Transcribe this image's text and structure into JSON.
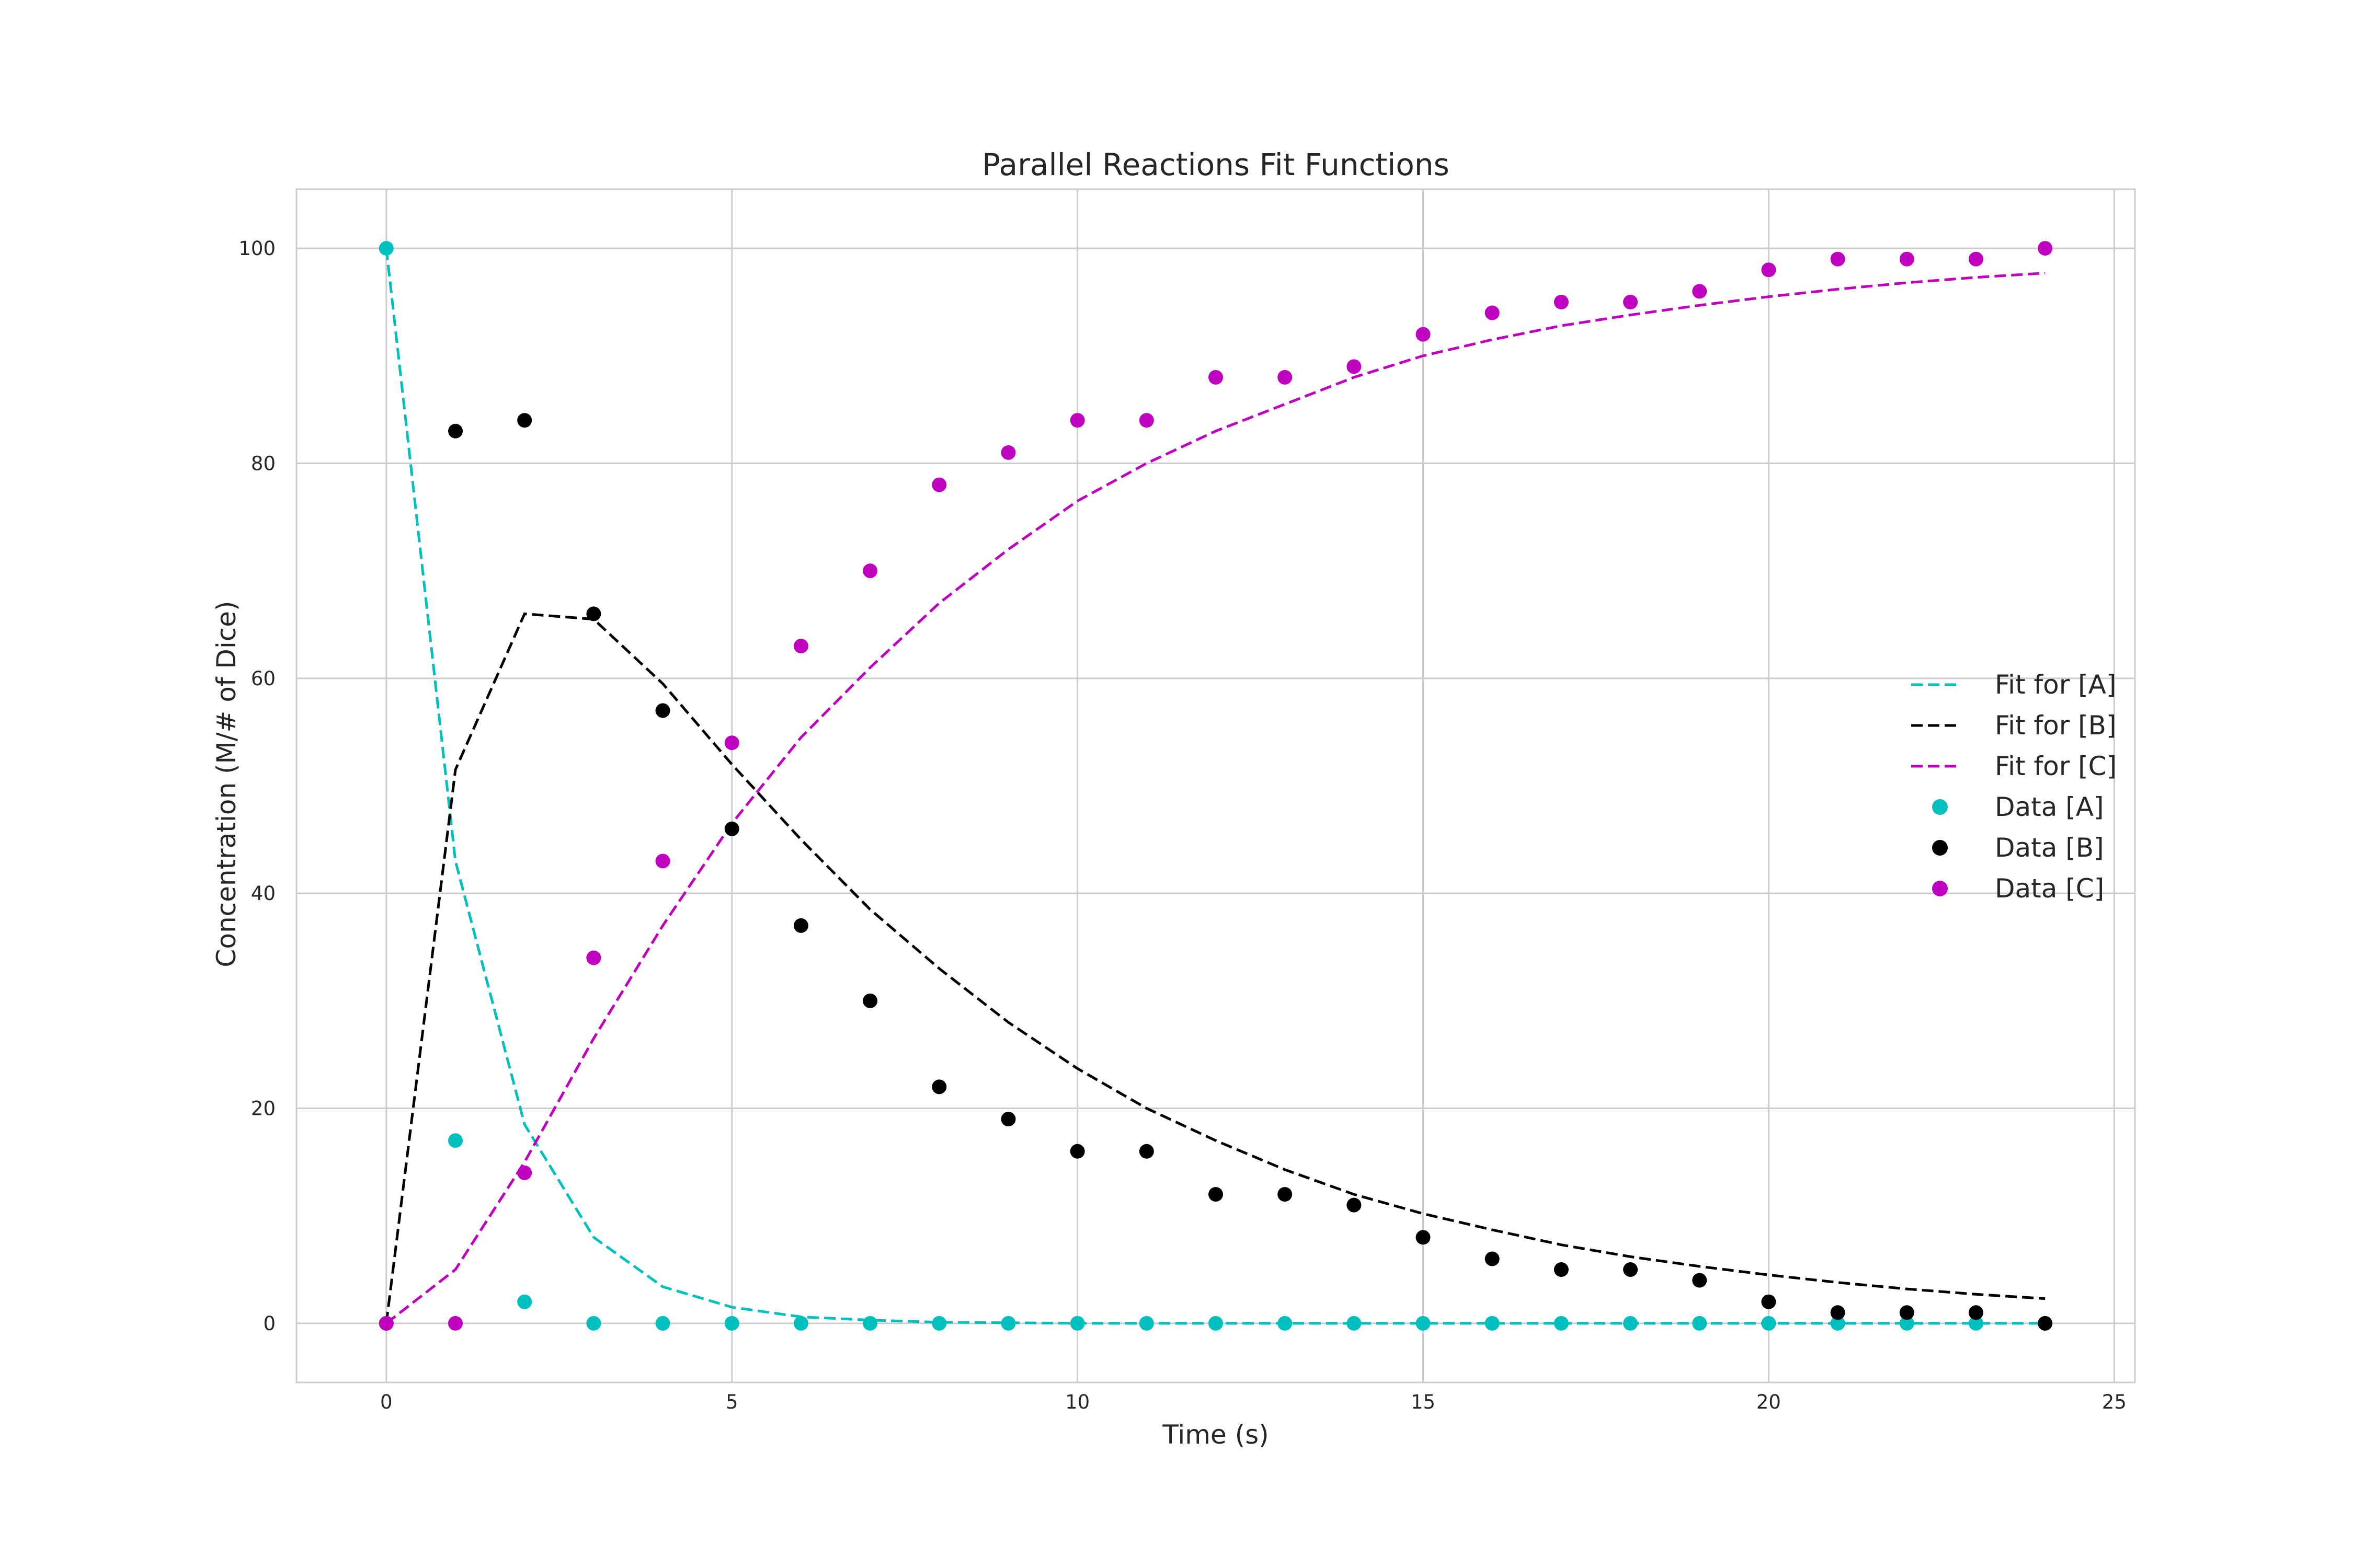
{
  "chart_data": {
    "type": "scatter",
    "title": "Parallel Reactions Fit Functions",
    "xlabel": "Time (s)",
    "ylabel": "Concentration (M/# of Dice)",
    "xlim": [
      -1.3,
      25.3
    ],
    "ylim": [
      -5.5,
      105.5
    ],
    "xticks": [
      0,
      5,
      10,
      15,
      20,
      25
    ],
    "yticks": [
      0,
      20,
      40,
      60,
      80,
      100
    ],
    "grid": true,
    "legend_position": "center-right",
    "x": [
      0,
      1,
      2,
      3,
      4,
      5,
      6,
      7,
      8,
      9,
      10,
      11,
      12,
      13,
      14,
      15,
      16,
      17,
      18,
      19,
      20,
      21,
      22,
      23,
      24
    ],
    "series": [
      {
        "name": "Fit for [A]",
        "kind": "line",
        "style": "dashed",
        "color": "#00bfbf",
        "values": [
          100,
          43,
          18.5,
          8,
          3.4,
          1.5,
          0.6,
          0.3,
          0.1,
          0.05,
          0,
          0,
          0,
          0,
          0,
          0,
          0,
          0,
          0,
          0,
          0,
          0,
          0,
          0,
          0
        ]
      },
      {
        "name": "Fit for [B]",
        "kind": "line",
        "style": "dashed",
        "color": "#000000",
        "values": [
          0,
          51.5,
          66,
          65.5,
          59.5,
          52,
          45,
          38.5,
          33,
          28,
          23.7,
          20,
          17,
          14.3,
          12,
          10.2,
          8.7,
          7.3,
          6.2,
          5.3,
          4.5,
          3.8,
          3.2,
          2.7,
          2.3
        ]
      },
      {
        "name": "Fit for [C]",
        "kind": "line",
        "style": "dashed",
        "color": "#bf00bf",
        "values": [
          0,
          5,
          15,
          26.5,
          37,
          46.5,
          54.5,
          61,
          67,
          72,
          76.5,
          80,
          83,
          85.5,
          88,
          90,
          91.5,
          92.8,
          93.8,
          94.7,
          95.5,
          96.2,
          96.8,
          97.3,
          97.7
        ]
      },
      {
        "name": "Data [A]",
        "kind": "scatter",
        "color": "#00bfbf",
        "values": [
          100,
          17,
          2,
          0,
          0,
          0,
          0,
          0,
          0,
          0,
          0,
          0,
          0,
          0,
          0,
          0,
          0,
          0,
          0,
          0,
          0,
          0,
          0,
          0,
          0
        ]
      },
      {
        "name": "Data [B]",
        "kind": "scatter",
        "color": "#000000",
        "values": [
          0,
          83,
          84,
          66,
          57,
          46,
          37,
          30,
          22,
          19,
          16,
          16,
          12,
          12,
          11,
          8,
          6,
          5,
          5,
          4,
          2,
          1,
          1,
          1,
          0
        ]
      },
      {
        "name": "Data [C]",
        "kind": "scatter",
        "color": "#bf00bf",
        "values": [
          0,
          0,
          14,
          34,
          43,
          54,
          63,
          70,
          78,
          81,
          84,
          84,
          88,
          88,
          89,
          92,
          94,
          95,
          95,
          96,
          98,
          99,
          99,
          99,
          100
        ]
      }
    ]
  }
}
